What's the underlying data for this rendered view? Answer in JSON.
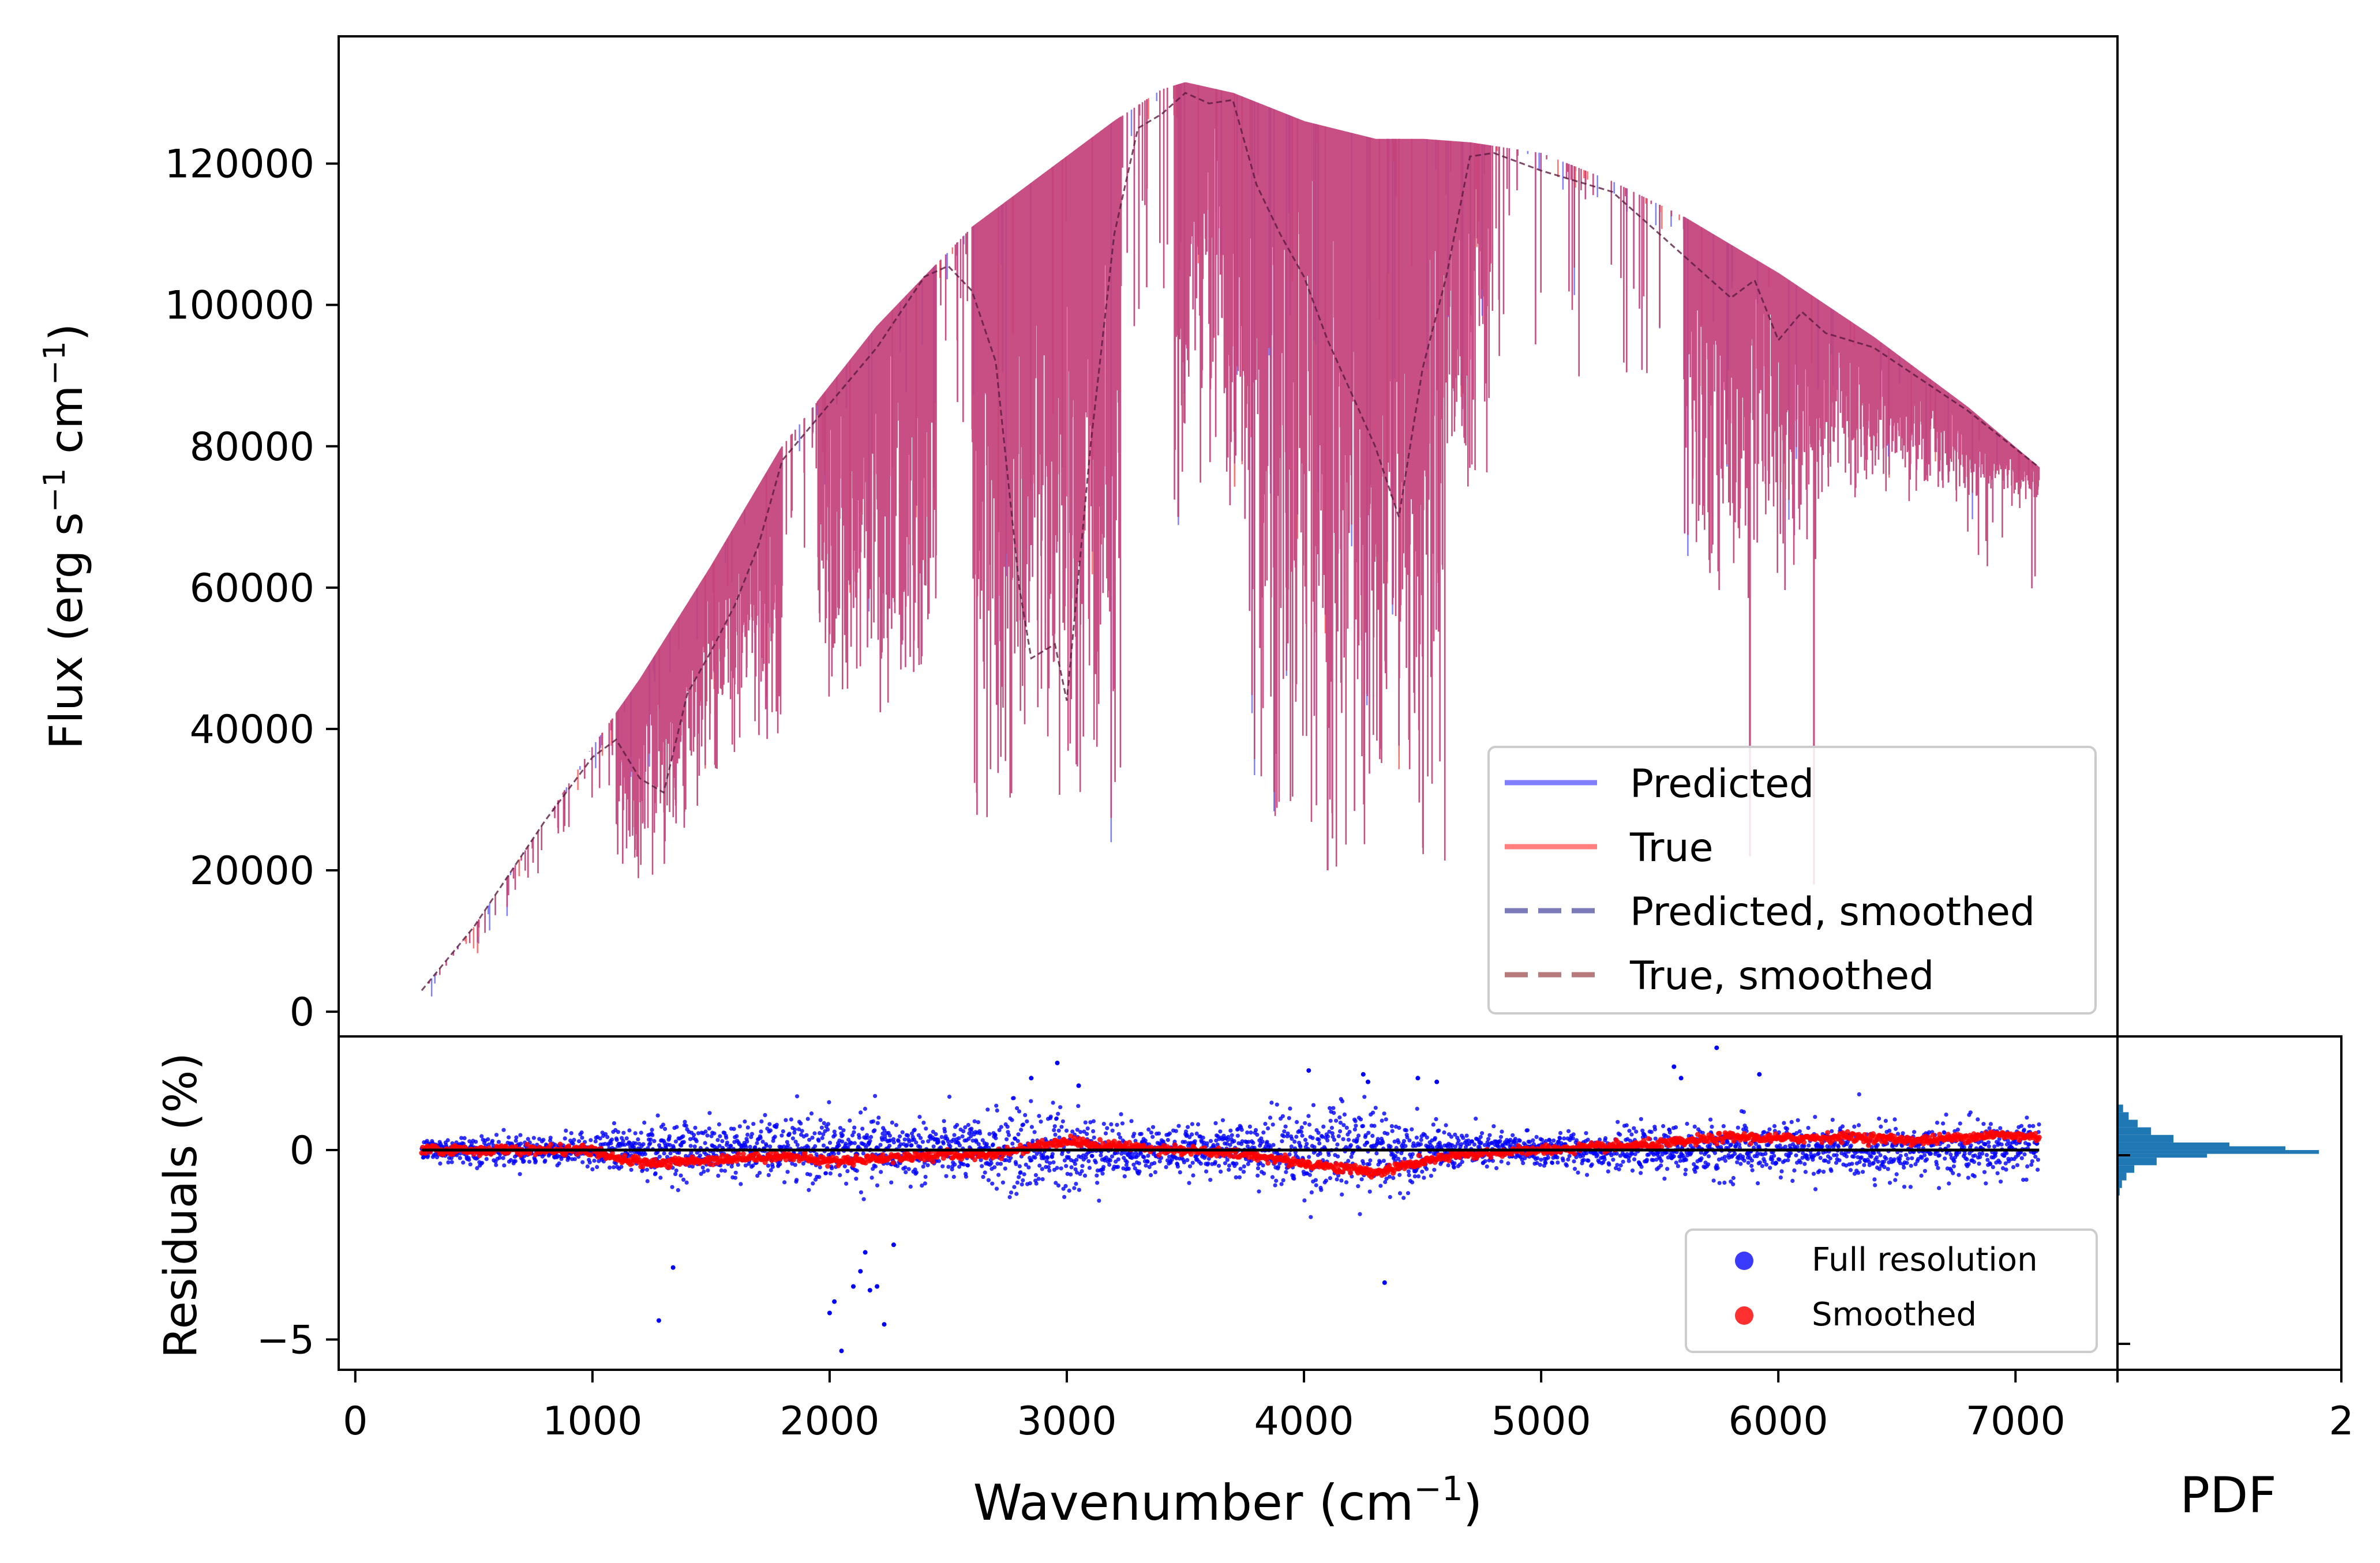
{
  "chart_data": [
    {
      "type": "line",
      "panel": "spectrum",
      "ylabel_main": "Flux (erg s",
      "ylabel_sup1": "−1",
      "ylabel_mid": " cm",
      "ylabel_sup2": "−1",
      "ylabel_end": ")",
      "xlim": [
        -70,
        7430
      ],
      "ylim": [
        -3500,
        138000
      ],
      "yticks": [
        0,
        20000,
        40000,
        60000,
        80000,
        100000,
        120000
      ],
      "ytick_labels": [
        "0",
        "20000",
        "40000",
        "60000",
        "80000",
        "100000",
        "120000"
      ],
      "continuum": {
        "x": [
          280,
          500,
          800,
          1000,
          1200,
          1500,
          1800,
          2000,
          2200,
          2400,
          2600,
          2800,
          3000,
          3200,
          3400,
          3500,
          3700,
          4000,
          4300,
          4500,
          4700,
          5000,
          5300,
          5600,
          6000,
          6400,
          6800,
          7100
        ],
        "y": [
          3000,
          12000,
          27000,
          37500,
          47000,
          63000,
          80000,
          88500,
          97000,
          104000,
          111000,
          116000,
          121000,
          126000,
          130500,
          131500,
          130000,
          126000,
          123500,
          123500,
          123000,
          121500,
          117500,
          112500,
          104500,
          95500,
          85500,
          77000
        ]
      },
      "smoothed": {
        "x": [
          280,
          500,
          800,
          1000,
          1100,
          1200,
          1300,
          1400,
          1500,
          1600,
          1700,
          1800,
          2000,
          2200,
          2400,
          2500,
          2600,
          2700,
          2800,
          2850,
          2950,
          3000,
          3100,
          3200,
          3300,
          3400,
          3500,
          3600,
          3700,
          3800,
          3900,
          4000,
          4100,
          4200,
          4300,
          4400,
          4500,
          4600,
          4700,
          4800,
          5000,
          5300,
          5600,
          5800,
          5900,
          6000,
          6100,
          6200,
          6400,
          6800,
          7100
        ],
        "y": [
          3000,
          12000,
          27000,
          36000,
          38500,
          33000,
          31000,
          45000,
          51000,
          57500,
          66000,
          78000,
          86000,
          94000,
          104000,
          105500,
          102000,
          92000,
          60000,
          50000,
          52000,
          44000,
          80000,
          110000,
          125000,
          127000,
          130000,
          128500,
          129000,
          117000,
          110000,
          104000,
          95000,
          87500,
          80000,
          70000,
          91000,
          104000,
          121000,
          121500,
          119000,
          116000,
          107000,
          101000,
          103500,
          95000,
          99000,
          96000,
          94000,
          85000,
          77000
        ]
      },
      "absorption_bands": [
        {
          "x0": 1100,
          "x1": 1450,
          "depth_to": 18000
        },
        {
          "x0": 1450,
          "x1": 1800,
          "depth_to": 33000
        },
        {
          "x0": 1950,
          "x1": 2450,
          "depth_to": 40000
        },
        {
          "x0": 2600,
          "x1": 3230,
          "depth_to": 23000
        },
        {
          "x0": 3450,
          "x1": 3750,
          "depth_to": 70000
        },
        {
          "x0": 3750,
          "x1": 4600,
          "depth_to": 16000
        },
        {
          "x0": 4600,
          "x1": 4780,
          "depth_to": 70000
        },
        {
          "x0": 5600,
          "x1": 6200,
          "depth_to": 57000
        },
        {
          "x0": 6200,
          "x1": 7100,
          "depth_to": 72000
        }
      ],
      "deep_lines_x": [
        3040,
        3470,
        4100,
        5880,
        6150
      ],
      "deep_lines_to": [
        35000,
        70000,
        20000,
        22000,
        18000
      ],
      "colors": {
        "predicted": "#8080ff",
        "true": "#ff7070",
        "overlap": "#c2407a",
        "smoothed": "#5a1a40"
      },
      "legend": {
        "location": "lower right",
        "entries": [
          "Predicted",
          "True",
          "Predicted, smoothed",
          "True, smoothed"
        ],
        "styles": [
          "solid",
          "solid",
          "dashed",
          "dashed"
        ],
        "colors": [
          "#7f7fff",
          "#ff7f7f",
          "#7b7bba",
          "#b87b7b"
        ]
      }
    },
    {
      "type": "scatter",
      "panel": "residuals",
      "ylabel": "Residuals (%)",
      "xlabel_main": "Wavenumber (cm",
      "xlabel_sup": "−1",
      "xlabel_end": ")",
      "xlim": [
        -70,
        7430
      ],
      "ylim": [
        -5.8,
        3.0
      ],
      "yticks": [
        -5,
        0
      ],
      "ytick_labels": [
        "−5",
        "0"
      ],
      "xticks": [
        0,
        1000,
        2000,
        3000,
        4000,
        5000,
        6000,
        7000
      ],
      "xtick_labels": [
        "0",
        "1000",
        "2000",
        "3000",
        "4000",
        "5000",
        "6000",
        "7000"
      ],
      "noise_profile": {
        "x": [
          280,
          1000,
          1100,
          1800,
          2000,
          2400,
          2600,
          2800,
          3000,
          3200,
          3600,
          3800,
          4000,
          4300,
          4600,
          5000,
          5500,
          5800,
          6200,
          7100
        ],
        "sigma": [
          0.25,
          0.25,
          0.45,
          0.5,
          0.6,
          0.55,
          0.5,
          0.8,
          0.75,
          0.5,
          0.35,
          0.6,
          0.75,
          0.8,
          0.35,
          0.3,
          0.35,
          0.5,
          0.45,
          0.5
        ]
      },
      "smoothed_residuals": {
        "x": [
          280,
          1000,
          1100,
          1300,
          1500,
          1800,
          2000,
          2400,
          2700,
          3000,
          3100,
          3500,
          3800,
          4000,
          4200,
          4300,
          4500,
          4700,
          5000,
          5500,
          5800,
          6000,
          6300,
          6600,
          6900,
          7100
        ],
        "y": [
          0.0,
          0.0,
          -0.25,
          -0.35,
          -0.25,
          -0.15,
          -0.3,
          -0.15,
          -0.1,
          0.25,
          0.15,
          0.0,
          -0.15,
          -0.35,
          -0.5,
          -0.6,
          -0.3,
          -0.1,
          0.0,
          0.15,
          0.35,
          0.3,
          0.35,
          0.25,
          0.4,
          0.35
        ]
      },
      "outliers": {
        "x": [
          1280,
          1340,
          2000,
          2020,
          2050,
          2100,
          2130,
          2150,
          2170,
          2200,
          2230,
          2270,
          2850,
          2960,
          3050,
          4020,
          4250,
          4270,
          4340,
          4480,
          4560,
          5560,
          5590,
          5740,
          5920
        ],
        "y": [
          -4.5,
          -3.1,
          -4.3,
          -4.0,
          -5.3,
          -3.6,
          -3.2,
          -2.7,
          -3.7,
          -3.6,
          -4.6,
          -2.5,
          1.9,
          2.3,
          1.7,
          2.1,
          2.0,
          1.8,
          -3.5,
          1.9,
          1.8,
          2.2,
          1.9,
          2.7,
          2.0
        ]
      },
      "colors": {
        "full": "#0000ff",
        "smoothed": "#ff0000",
        "zero_line": "#000000"
      },
      "legend": {
        "location": "lower right",
        "entries": [
          "Full resolution",
          "Smoothed"
        ],
        "colors": [
          "#3a3aff",
          "#ff3030"
        ]
      }
    },
    {
      "type": "bar",
      "panel": "histogram",
      "orientation": "horizontal",
      "xlabel": "PDF",
      "xlim": [
        0,
        2
      ],
      "xtick_labels_shown": [
        "2"
      ],
      "color": "#1f77b4",
      "bins_y": [
        -1.2,
        -1.0,
        -0.8,
        -0.6,
        -0.4,
        -0.2,
        -0.1,
        0.0,
        0.1,
        0.2,
        0.4,
        0.6,
        0.8,
        1.0,
        1.2
      ],
      "density": [
        0.02,
        0.04,
        0.08,
        0.15,
        0.35,
        0.8,
        1.8,
        1.5,
        1.0,
        0.5,
        0.3,
        0.18,
        0.1,
        0.05,
        0.02
      ]
    }
  ]
}
